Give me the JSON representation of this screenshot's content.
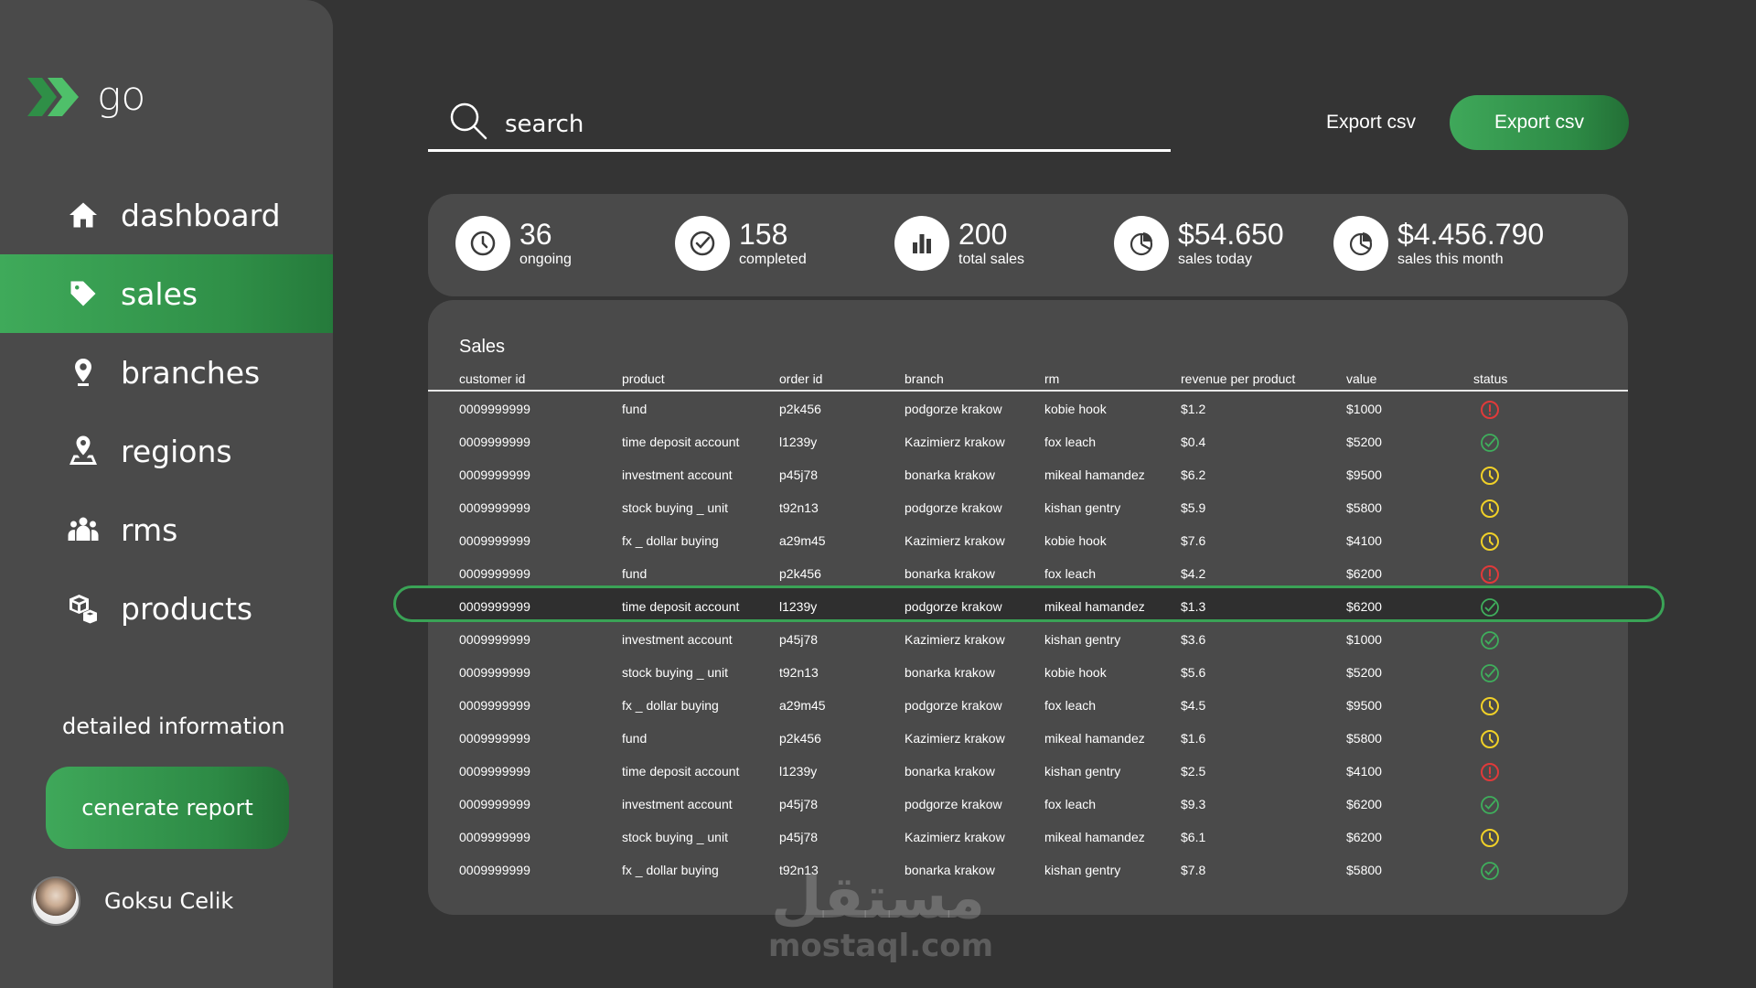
{
  "app": {
    "name": "go"
  },
  "sidebar": {
    "items": [
      {
        "label": "dashboard",
        "icon": "home-icon",
        "active": false
      },
      {
        "label": "sales",
        "icon": "tag-icon",
        "active": true
      },
      {
        "label": "branches",
        "icon": "location-pin-icon",
        "active": false
      },
      {
        "label": "regions",
        "icon": "map-pin-icon",
        "active": false
      },
      {
        "label": "rms",
        "icon": "users-icon",
        "active": false
      },
      {
        "label": "products",
        "icon": "boxes-icon",
        "active": false
      }
    ],
    "detail_label": "detailed information",
    "report_button": "cenerate report",
    "user_name": "Goksu Celik"
  },
  "search": {
    "placeholder": "search"
  },
  "toolbar": {
    "export_link": "Export csv",
    "export_button": "Export csv"
  },
  "stats": [
    {
      "value": "36",
      "label": "ongoing",
      "icon": "clock-icon"
    },
    {
      "value": "158",
      "label": "completed",
      "icon": "check-circle-icon"
    },
    {
      "value": "200",
      "label": "total sales",
      "icon": "bar-chart-icon"
    },
    {
      "value": "$54.650",
      "label": "sales today",
      "icon": "pie-chart-icon"
    },
    {
      "value": "$4.456.790",
      "label": "sales this month",
      "icon": "pie-chart-icon"
    }
  ],
  "table": {
    "title": "Sales",
    "columns": [
      "customer id",
      "product",
      "order id",
      "branch",
      "rm",
      "revenue per product",
      "value",
      "status"
    ],
    "rows": [
      [
        "0009999999",
        "fund",
        "p2k456",
        "podgorze krakow",
        "kobie hook",
        "$1.2",
        "$1000",
        "error"
      ],
      [
        "0009999999",
        "time deposit account",
        "l1239y",
        "Kazimierz krakow",
        "fox leach",
        "$0.4",
        "$5200",
        "done"
      ],
      [
        "0009999999",
        "investment account",
        "p45j78",
        "bonarka krakow",
        "mikeal hamandez",
        "$6.2",
        "$9500",
        "pending"
      ],
      [
        "0009999999",
        "stock buying _ unit",
        "t92n13",
        "podgorze krakow",
        "kishan gentry",
        "$5.9",
        "$5800",
        "pending"
      ],
      [
        "0009999999",
        "fx _ dollar buying",
        "a29m45",
        "Kazimierz krakow",
        "kobie hook",
        "$7.6",
        "$4100",
        "pending"
      ],
      [
        "0009999999",
        "fund",
        "p2k456",
        "bonarka krakow",
        "fox leach",
        "$4.2",
        "$6200",
        "error"
      ],
      [
        "0009999999",
        "time deposit account",
        "l1239y",
        "podgorze krakow",
        "mikeal hamandez",
        "$1.3",
        "$6200",
        "done"
      ],
      [
        "0009999999",
        "investment account",
        "p45j78",
        "Kazimierz krakow",
        "kishan gentry",
        "$3.6",
        "$1000",
        "done"
      ],
      [
        "0009999999",
        "stock buying _ unit",
        "t92n13",
        "bonarka krakow",
        "kobie hook",
        "$5.6",
        "$5200",
        "done"
      ],
      [
        "0009999999",
        "fx _ dollar buying",
        "a29m45",
        "podgorze krakow",
        "fox leach",
        "$4.5",
        "$9500",
        "pending"
      ],
      [
        "0009999999",
        "fund",
        "p2k456",
        "Kazimierz krakow",
        "mikeal hamandez",
        "$1.6",
        "$5800",
        "pending"
      ],
      [
        "0009999999",
        "time deposit account",
        "l1239y",
        "bonarka krakow",
        "kishan gentry",
        "$2.5",
        "$4100",
        "error"
      ],
      [
        "0009999999",
        "investment account",
        "p45j78",
        "podgorze krakow",
        "fox leach",
        "$9.3",
        "$6200",
        "done"
      ],
      [
        "0009999999",
        "stock buying _ unit",
        "p45j78",
        "Kazimierz krakow",
        "mikeal hamandez",
        "$6.1",
        "$6200",
        "pending"
      ],
      [
        "0009999999",
        "fx _ dollar buying",
        "t92n13",
        "bonarka krakow",
        "kishan gentry",
        "$7.8",
        "$5800",
        "done"
      ]
    ],
    "selected_row": 6
  },
  "colors": {
    "accent_green": "#3fa85a",
    "status_error": "#e03a3a",
    "status_done": "#3fae5c",
    "status_pending": "#f0d028"
  },
  "watermark": {
    "arabic": "مستقل",
    "text": "mostaql.com"
  }
}
